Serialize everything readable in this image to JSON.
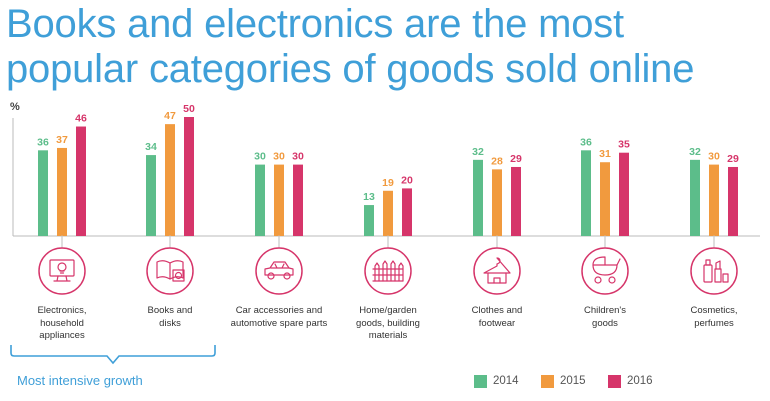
{
  "title": {
    "line1": "Books and electronics are the most",
    "line2": "popular categories of goods sold online"
  },
  "chart_data": {
    "type": "bar",
    "title": "Books and electronics are the most popular categories of goods sold online",
    "ylabel": "%",
    "ylim": [
      0,
      50
    ],
    "legend_position": "bottom-right",
    "categories": [
      "Electronics, household appliances",
      "Books and disks",
      "Car accessories and automotive spare parts",
      "Home/garden goods, building materials",
      "Clothes and footwear",
      "Children's goods",
      "Cosmetics, perfumes"
    ],
    "category_lines": [
      [
        "Electronics,",
        "household",
        "appliances"
      ],
      [
        "Books and",
        "disks"
      ],
      [
        "Car accessories and",
        "automotive spare parts"
      ],
      [
        "Home/garden",
        "goods, building",
        "materials"
      ],
      [
        "Clothes and",
        "footwear"
      ],
      [
        "Children's",
        "goods"
      ],
      [
        "Cosmetics,",
        "perfumes"
      ]
    ],
    "icons": [
      "electronics-icon",
      "books-disks-icon",
      "car-icon",
      "fence-house-icon",
      "clothes-hanger-icon",
      "baby-stroller-icon",
      "cosmetics-icon"
    ],
    "series": [
      {
        "name": "2014",
        "color": "#5cbd8a",
        "values": [
          36,
          34,
          30,
          13,
          32,
          36,
          32
        ]
      },
      {
        "name": "2015",
        "color": "#f19a3e",
        "values": [
          37,
          47,
          30,
          19,
          28,
          31,
          30
        ]
      },
      {
        "name": "2016",
        "color": "#d6356a",
        "values": [
          46,
          50,
          30,
          20,
          29,
          35,
          29
        ]
      }
    ]
  },
  "annotation": {
    "growth_label": "Most intensive growth"
  },
  "colors": {
    "title": "#3f9fd8",
    "accent": "#d6356a",
    "axis": "#bbbbbb"
  }
}
